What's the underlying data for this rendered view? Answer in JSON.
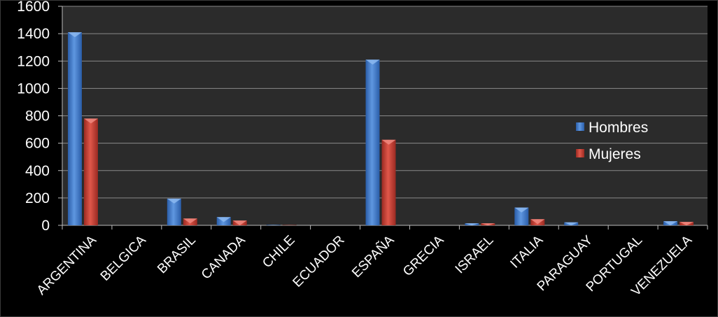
{
  "chart_data": {
    "type": "bar",
    "title": "",
    "xlabel": "",
    "ylabel": "",
    "ylim": [
      0,
      1600
    ],
    "yticks": [
      "0",
      "200",
      "400",
      "600",
      "800",
      "1000",
      "1200",
      "1400",
      "1600"
    ],
    "grid": true,
    "legend_position": "right",
    "categories": [
      "ARGENTINA",
      "BELGICA",
      "BRASIL",
      "CANADA",
      "CHILE",
      "ECUADOR",
      "ESPAÑA",
      "GRECIA",
      "ISRAEL",
      "ITALIA",
      "PARAGUAY",
      "PORTUGAL",
      "VENEZUELA"
    ],
    "series": [
      {
        "name": "Hombres",
        "color": "#3f79c9",
        "values": [
          1410,
          0,
          195,
          60,
          3,
          0,
          1210,
          0,
          15,
          130,
          22,
          0,
          30
        ]
      },
      {
        "name": "Mujeres",
        "color": "#c0392b",
        "values": [
          780,
          0,
          50,
          35,
          2,
          0,
          625,
          0,
          15,
          45,
          0,
          0,
          25
        ]
      }
    ],
    "plot_background": "#2b2b2b",
    "gridline_color": "#8a8a8a",
    "text_color": "#ffffff"
  }
}
